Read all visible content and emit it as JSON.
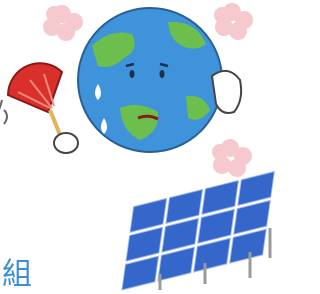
{
  "caption": "組"
}
